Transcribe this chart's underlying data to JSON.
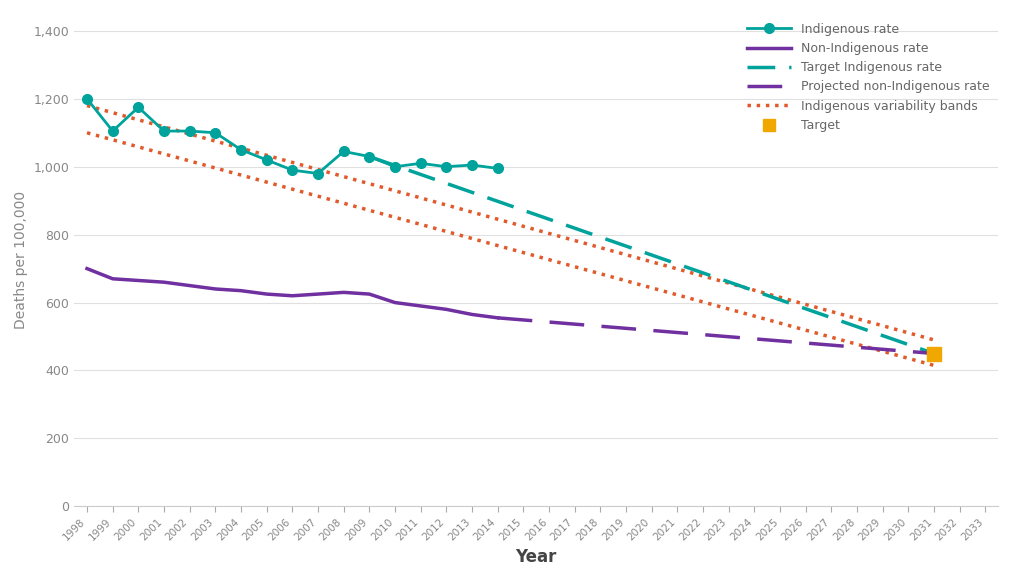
{
  "indigenous_years": [
    1998,
    1999,
    2000,
    2001,
    2002,
    2003,
    2004,
    2005,
    2006,
    2007,
    2008,
    2009,
    2010,
    2011,
    2012,
    2013,
    2014
  ],
  "indigenous_values": [
    1200,
    1105,
    1175,
    1105,
    1105,
    1100,
    1050,
    1020,
    990,
    980,
    1045,
    1030,
    1000,
    1010,
    1000,
    1005,
    995
  ],
  "non_indigenous_years": [
    1998,
    1999,
    2000,
    2001,
    2002,
    2003,
    2004,
    2005,
    2006,
    2007,
    2008,
    2009,
    2010,
    2011,
    2012,
    2013,
    2014
  ],
  "non_indigenous_values": [
    700,
    670,
    665,
    660,
    650,
    640,
    635,
    625,
    620,
    625,
    630,
    625,
    600,
    590,
    580,
    565,
    555
  ],
  "target_indigenous_years": [
    2009,
    2031
  ],
  "target_indigenous_values": [
    1030,
    450
  ],
  "projected_non_indigenous_years": [
    2014,
    2031
  ],
  "projected_non_indigenous_values": [
    555,
    450
  ],
  "variability_upper_years": [
    1998,
    2031
  ],
  "variability_upper_values": [
    1180,
    490
  ],
  "variability_lower_years": [
    1998,
    2031
  ],
  "variability_lower_values": [
    1100,
    415
  ],
  "target_year": 2031,
  "target_value": 450,
  "indigenous_color": "#00a39b",
  "non_indigenous_color": "#7030a0",
  "target_indigenous_color": "#00a39b",
  "projected_non_indigenous_color": "#7030a0",
  "variability_color": "#e05a2b",
  "target_marker_color": "#f0a800",
  "xlabel": "Year",
  "ylabel": "Deaths per 100,000",
  "ylim": [
    0,
    1450
  ],
  "yticks": [
    0,
    200,
    400,
    600,
    800,
    1000,
    1200,
    1400
  ],
  "ytick_labels": [
    "0",
    "200",
    "400",
    "600",
    "800",
    "1,000",
    "1,200",
    "1,400"
  ],
  "xmin": 1997.5,
  "xmax": 2033.5
}
